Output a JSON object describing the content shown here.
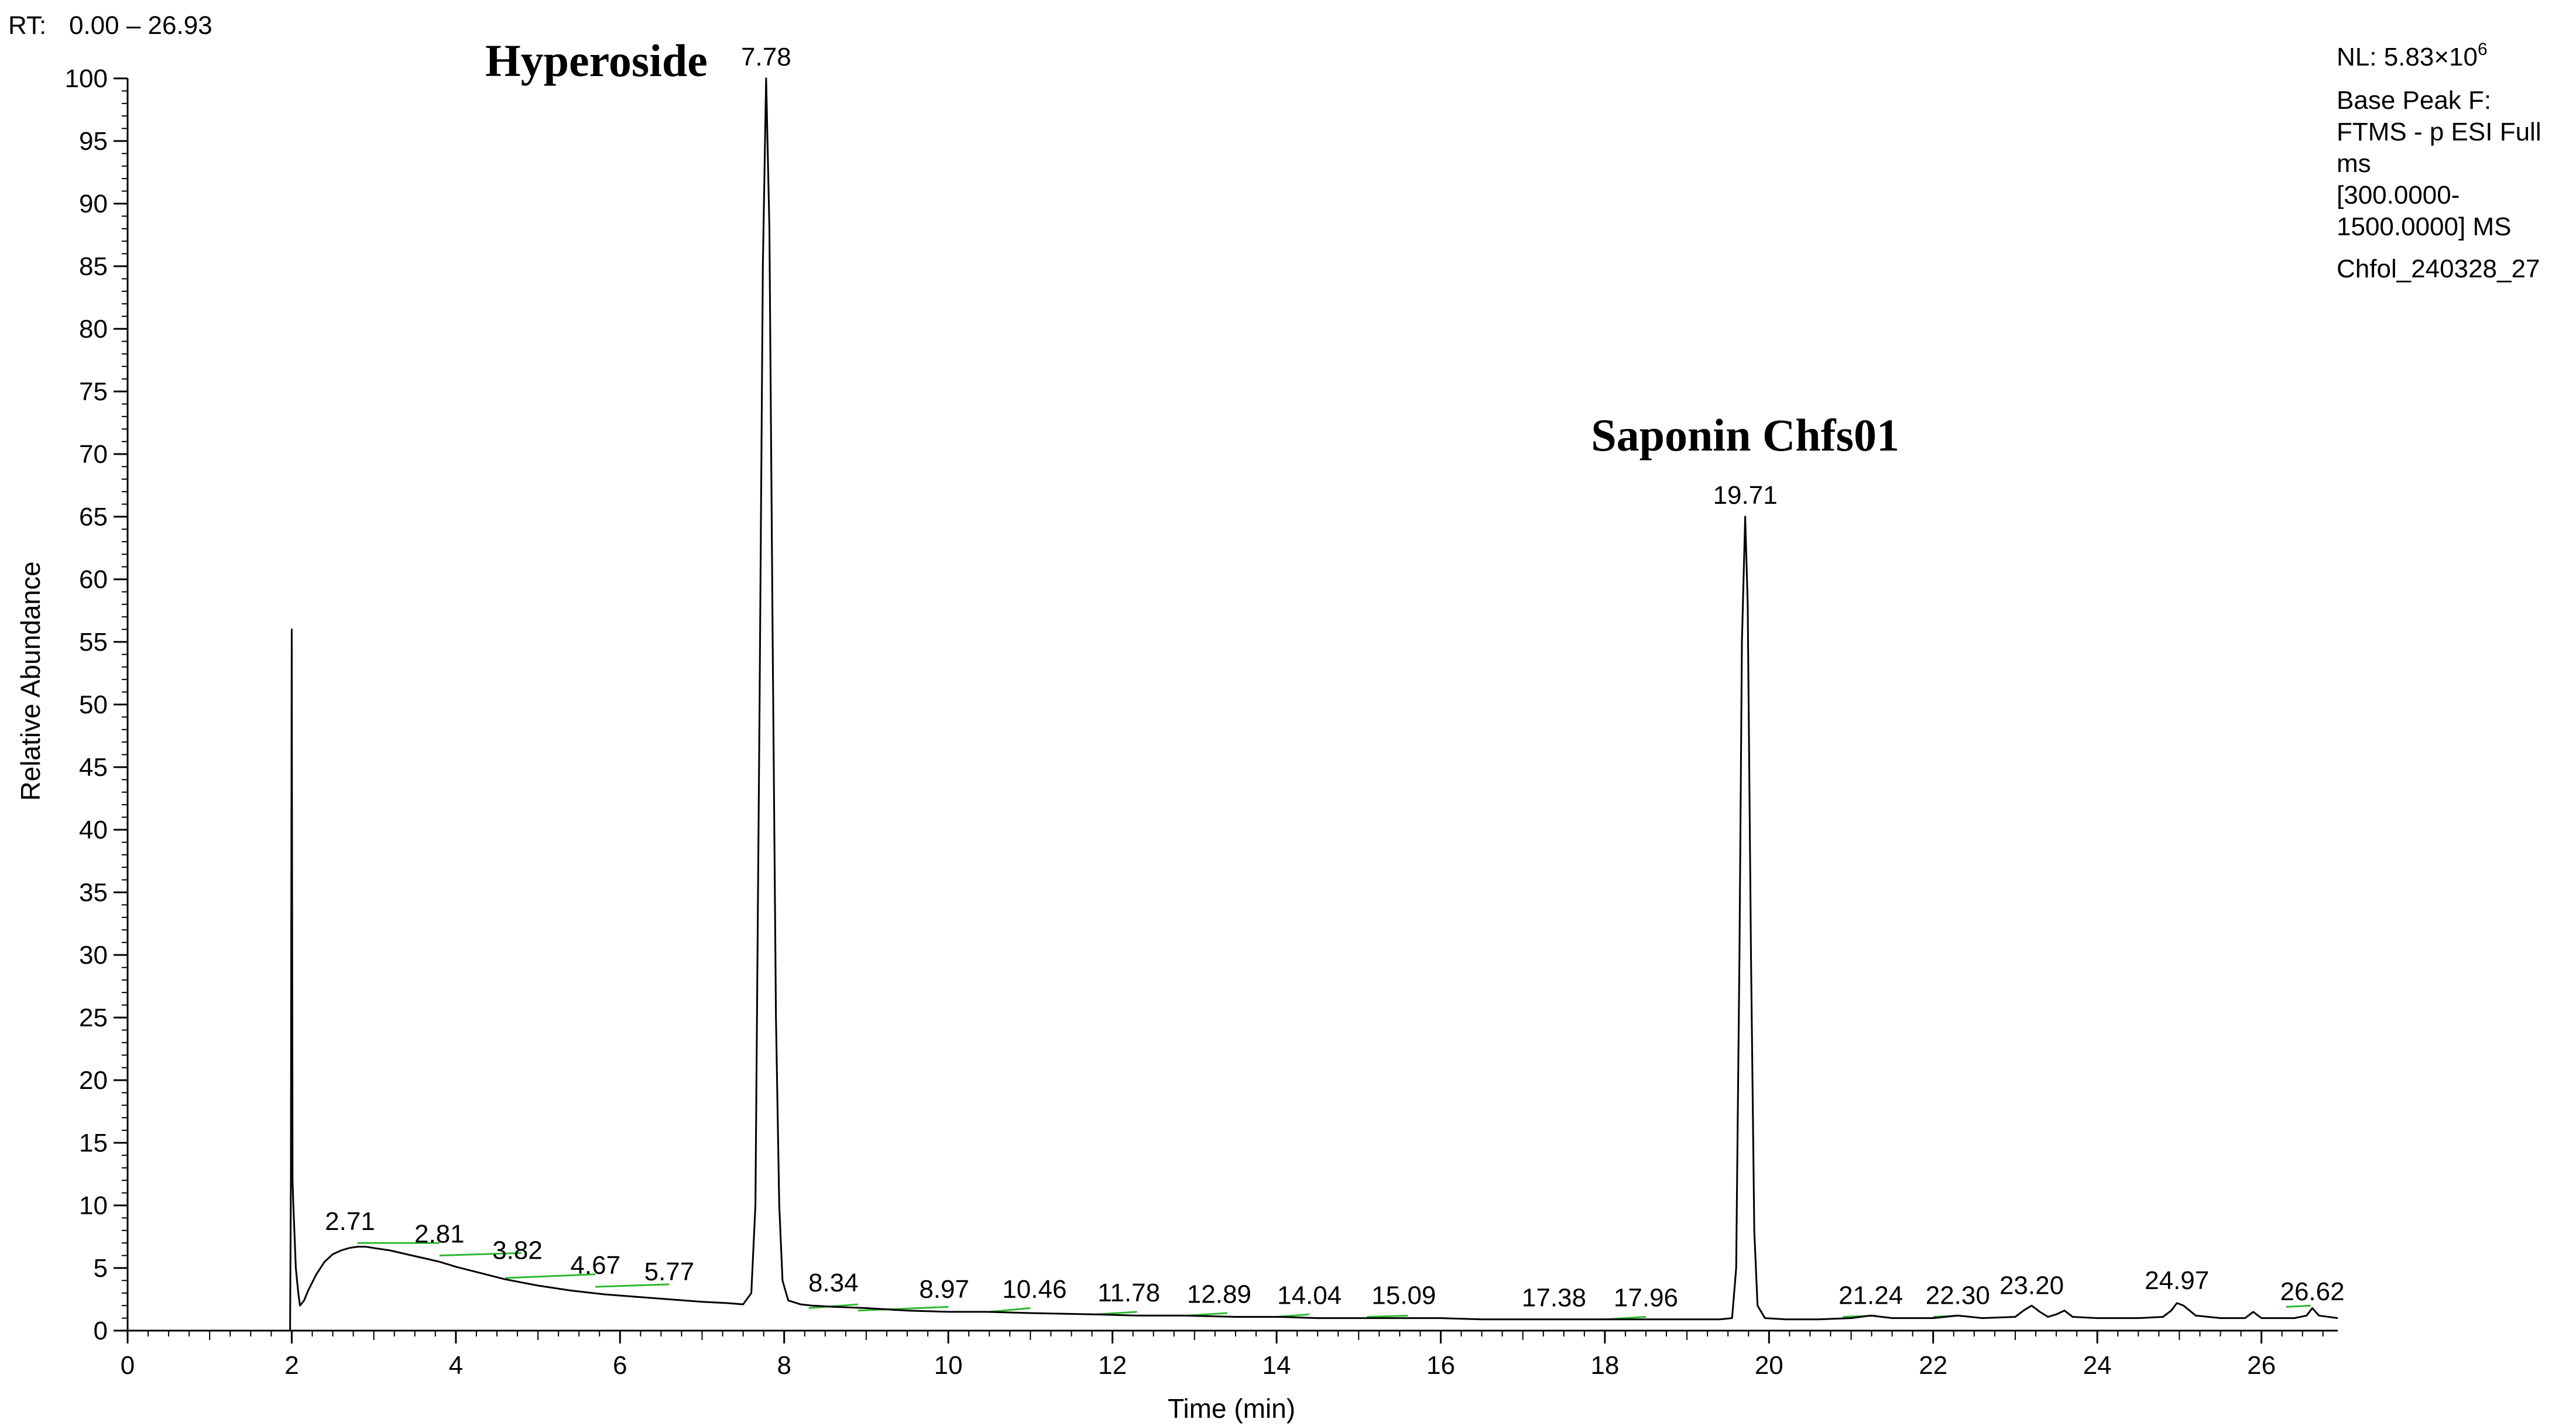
{
  "header": {
    "rt_label": "RT:",
    "rt_range": "0.00 – 26.93"
  },
  "info_box": {
    "nl_prefix": "NL: 5.83×10",
    "nl_exponent": "6",
    "lines": [
      "Base Peak F:",
      "FTMS - p ESI Full",
      "ms",
      "[300.0000-",
      "1500.0000]  MS",
      "Chfol_240328_27"
    ]
  },
  "colors": {
    "trace": "#000000",
    "baseline": "#2fb82f",
    "rt_value": "#1f2fa0"
  },
  "chart_data": {
    "type": "line",
    "xlabel": "Time (min)",
    "ylabel": "Relative Abundance",
    "xlim": [
      0,
      26.93
    ],
    "ylim": [
      0,
      100
    ],
    "x_ticks": [
      0,
      2,
      4,
      6,
      8,
      10,
      12,
      14,
      16,
      18,
      20,
      22,
      24,
      26
    ],
    "y_ticks": [
      0,
      5,
      10,
      15,
      20,
      25,
      30,
      35,
      40,
      45,
      50,
      55,
      60,
      65,
      70,
      75,
      80,
      85,
      90,
      95,
      100
    ],
    "grid": false,
    "compound_annotations": [
      {
        "text": "Hyperoside",
        "rt": 7.78
      },
      {
        "text": "Saponin Chfs01",
        "rt": 19.71
      }
    ],
    "peak_labels": [
      {
        "text": "2.71",
        "x": 2.71,
        "y": 7.0
      },
      {
        "text": "2.81",
        "x": 3.8,
        "y": 6.0
      },
      {
        "text": "3.82",
        "x": 4.75,
        "y": 4.7
      },
      {
        "text": "4.67",
        "x": 5.7,
        "y": 3.5
      },
      {
        "text": "5.77",
        "x": 6.6,
        "y": 3.0
      },
      {
        "text": "7.78",
        "x": 7.78,
        "y": 100
      },
      {
        "text": "8.34",
        "x": 8.6,
        "y": 2.1
      },
      {
        "text": "8.97",
        "x": 9.95,
        "y": 1.6
      },
      {
        "text": "10.46",
        "x": 11.05,
        "y": 1.6
      },
      {
        "text": "11.78",
        "x": 12.2,
        "y": 1.3
      },
      {
        "text": "12.89",
        "x": 13.3,
        "y": 1.2
      },
      {
        "text": "14.04",
        "x": 14.4,
        "y": 1.1
      },
      {
        "text": "15.09",
        "x": 15.55,
        "y": 1.1
      },
      {
        "text": "17.38",
        "x": 17.38,
        "y": 0.9
      },
      {
        "text": "17.96",
        "x": 18.5,
        "y": 0.9
      },
      {
        "text": "19.71",
        "x": 19.71,
        "y": 65
      },
      {
        "text": "21.24",
        "x": 21.24,
        "y": 1.1
      },
      {
        "text": "22.30",
        "x": 22.3,
        "y": 1.1
      },
      {
        "text": "23.20",
        "x": 23.2,
        "y": 1.9
      },
      {
        "text": "24.97",
        "x": 24.97,
        "y": 2.3
      },
      {
        "text": "26.62",
        "x": 26.62,
        "y": 1.4
      }
    ],
    "baseline_segments": [
      [
        2.8,
        7.0,
        3.8,
        7.0
      ],
      [
        3.8,
        6.0,
        4.8,
        6.2
      ],
      [
        4.6,
        4.2,
        5.7,
        4.5
      ],
      [
        5.7,
        3.5,
        6.6,
        3.7
      ],
      [
        8.3,
        1.8,
        8.9,
        2.1
      ],
      [
        8.9,
        1.6,
        10.0,
        1.9
      ],
      [
        10.5,
        1.5,
        11.0,
        1.8
      ],
      [
        11.8,
        1.3,
        12.3,
        1.5
      ],
      [
        12.9,
        1.2,
        13.4,
        1.4
      ],
      [
        14.0,
        1.1,
        14.4,
        1.3
      ],
      [
        15.1,
        1.1,
        15.6,
        1.2
      ],
      [
        18.0,
        0.9,
        18.5,
        1.1
      ],
      [
        20.9,
        1.1,
        21.3,
        1.2
      ],
      [
        22.0,
        1.1,
        22.3,
        1.2
      ],
      [
        26.3,
        1.9,
        26.6,
        2.0
      ]
    ],
    "series": [
      {
        "points": [
          [
            0.0,
            0.0
          ],
          [
            1.98,
            0.0
          ],
          [
            1.99,
            12.0
          ],
          [
            2.0,
            56.0
          ],
          [
            2.01,
            12.0
          ],
          [
            2.02,
            10.0
          ],
          [
            2.05,
            5.0
          ],
          [
            2.08,
            3.0
          ],
          [
            2.1,
            2.0
          ],
          [
            2.15,
            2.4
          ],
          [
            2.2,
            3.2
          ],
          [
            2.3,
            4.5
          ],
          [
            2.4,
            5.5
          ],
          [
            2.5,
            6.1
          ],
          [
            2.6,
            6.4
          ],
          [
            2.7,
            6.6
          ],
          [
            2.8,
            6.7
          ],
          [
            2.9,
            6.7
          ],
          [
            3.0,
            6.6
          ],
          [
            3.2,
            6.4
          ],
          [
            3.4,
            6.1
          ],
          [
            3.6,
            5.8
          ],
          [
            3.8,
            5.5
          ],
          [
            4.0,
            5.1
          ],
          [
            4.3,
            4.6
          ],
          [
            4.6,
            4.1
          ],
          [
            5.0,
            3.6
          ],
          [
            5.4,
            3.2
          ],
          [
            5.8,
            2.9
          ],
          [
            6.2,
            2.7
          ],
          [
            6.6,
            2.5
          ],
          [
            7.0,
            2.3
          ],
          [
            7.3,
            2.2
          ],
          [
            7.5,
            2.1
          ],
          [
            7.6,
            3.0
          ],
          [
            7.65,
            10.0
          ],
          [
            7.7,
            50.0
          ],
          [
            7.74,
            85.0
          ],
          [
            7.78,
            100.0
          ],
          [
            7.82,
            88.0
          ],
          [
            7.86,
            55.0
          ],
          [
            7.9,
            25.0
          ],
          [
            7.94,
            10.0
          ],
          [
            7.98,
            4.0
          ],
          [
            8.05,
            2.4
          ],
          [
            8.2,
            2.1
          ],
          [
            8.34,
            2.0
          ],
          [
            8.6,
            1.9
          ],
          [
            9.0,
            1.8
          ],
          [
            9.5,
            1.6
          ],
          [
            10.0,
            1.5
          ],
          [
            10.46,
            1.5
          ],
          [
            11.0,
            1.4
          ],
          [
            11.78,
            1.3
          ],
          [
            12.3,
            1.2
          ],
          [
            12.89,
            1.2
          ],
          [
            13.5,
            1.1
          ],
          [
            14.04,
            1.1
          ],
          [
            14.5,
            1.0
          ],
          [
            15.09,
            1.0
          ],
          [
            15.6,
            1.0
          ],
          [
            16.0,
            1.0
          ],
          [
            16.5,
            0.9
          ],
          [
            17.0,
            0.9
          ],
          [
            17.38,
            0.9
          ],
          [
            17.96,
            0.9
          ],
          [
            18.5,
            0.9
          ],
          [
            19.0,
            0.9
          ],
          [
            19.4,
            0.9
          ],
          [
            19.55,
            1.0
          ],
          [
            19.6,
            5.0
          ],
          [
            19.64,
            30.0
          ],
          [
            19.67,
            55.0
          ],
          [
            19.71,
            65.0
          ],
          [
            19.74,
            58.0
          ],
          [
            19.78,
            30.0
          ],
          [
            19.82,
            8.0
          ],
          [
            19.86,
            2.0
          ],
          [
            19.95,
            1.0
          ],
          [
            20.2,
            0.9
          ],
          [
            20.6,
            0.9
          ],
          [
            21.0,
            1.0
          ],
          [
            21.24,
            1.2
          ],
          [
            21.5,
            1.0
          ],
          [
            22.0,
            1.0
          ],
          [
            22.3,
            1.2
          ],
          [
            22.6,
            1.0
          ],
          [
            23.0,
            1.1
          ],
          [
            23.1,
            1.6
          ],
          [
            23.2,
            2.0
          ],
          [
            23.3,
            1.5
          ],
          [
            23.4,
            1.1
          ],
          [
            23.5,
            1.3
          ],
          [
            23.6,
            1.6
          ],
          [
            23.7,
            1.1
          ],
          [
            24.0,
            1.0
          ],
          [
            24.5,
            1.0
          ],
          [
            24.8,
            1.1
          ],
          [
            24.9,
            1.6
          ],
          [
            24.97,
            2.2
          ],
          [
            25.05,
            2.0
          ],
          [
            25.2,
            1.2
          ],
          [
            25.5,
            1.0
          ],
          [
            25.8,
            1.0
          ],
          [
            25.9,
            1.5
          ],
          [
            26.0,
            1.0
          ],
          [
            26.4,
            1.0
          ],
          [
            26.55,
            1.2
          ],
          [
            26.62,
            1.8
          ],
          [
            26.7,
            1.2
          ],
          [
            26.93,
            1.0
          ]
        ]
      }
    ]
  }
}
